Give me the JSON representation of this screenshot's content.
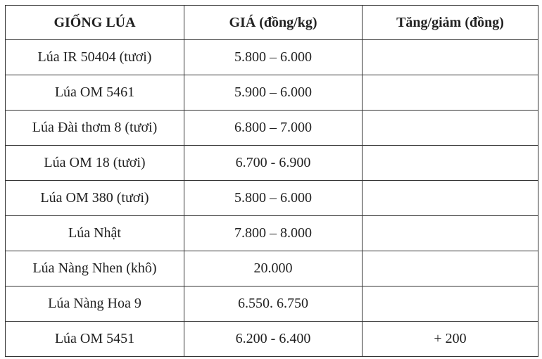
{
  "table": {
    "header": [
      "GIỐNG LÚA",
      "GIÁ (đồng/kg)",
      "Tăng/giảm (đồng)"
    ],
    "rows": [
      [
        "Lúa IR 50404 (tươi)",
        "5.800 – 6.000"
      ],
      [
        "Lúa OM 5461",
        "5.900 – 6.000"
      ],
      [
        "Lúa Đài thơm 8 (tươi)",
        "6.800 – 7.000"
      ],
      [
        "Lúa OM 18 (tươi)",
        "6.700 - 6.900"
      ],
      [
        "Lúa OM 380 (tươi)",
        "5.800 – 6.000"
      ],
      [
        "Lúa Nhật",
        "7.800 – 8.000"
      ],
      [
        "Lúa Nàng Nhen (khô)",
        "20.000"
      ],
      [
        "Lúa Nàng Hoa 9",
        "6.550. 6.750"
      ],
      [
        "Lúa OM 5451",
        "6.200 - 6.400",
        "+ 200"
      ]
    ]
  }
}
